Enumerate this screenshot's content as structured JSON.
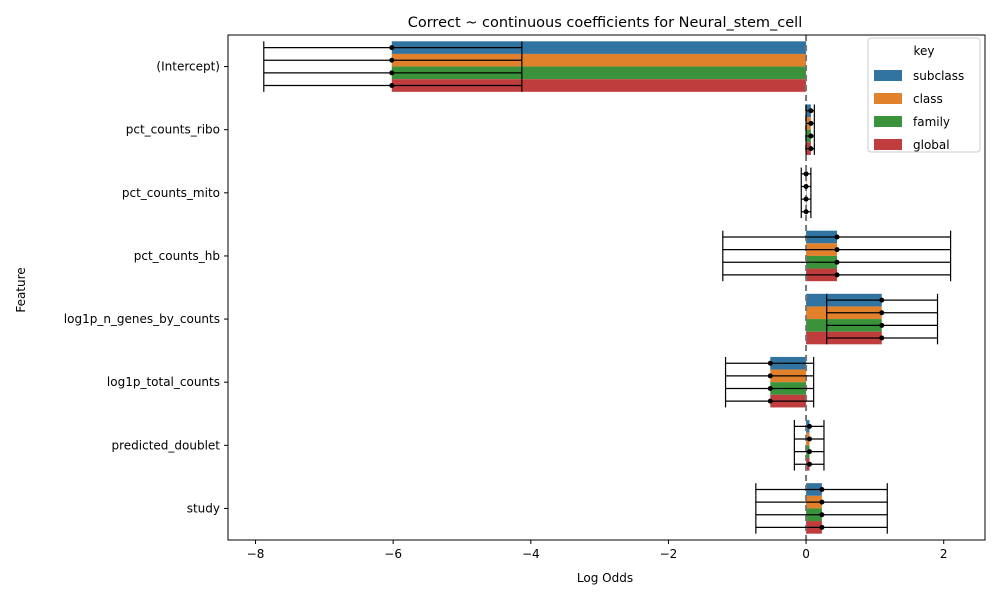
{
  "chart_data": {
    "type": "bar",
    "orientation": "horizontal",
    "title": "Correct ~ continuous coefficients for Neural_stem_cell",
    "xlabel": "Log Odds",
    "ylabel": "Feature",
    "xlim": [
      -8.4,
      2.6
    ],
    "xticks": [
      -8,
      -6,
      -4,
      -2,
      0,
      2
    ],
    "xtick_labels": [
      "−8",
      "−6",
      "−4",
      "−2",
      "0",
      "2"
    ],
    "reference_line": 0,
    "categories": [
      "(Intercept)",
      "pct_counts_ribo",
      "pct_counts_mito",
      "pct_counts_hb",
      "log1p_n_genes_by_counts",
      "log1p_total_counts",
      "predicted_doublet",
      "study"
    ],
    "legend": {
      "title": "key",
      "position": "top-right"
    },
    "series": [
      {
        "name": "subclass",
        "color": "#3274a1",
        "values": [
          -6.02,
          0.07,
          0.0,
          0.45,
          1.1,
          -0.52,
          0.05,
          0.23
        ],
        "lower": [
          -7.88,
          0.0,
          -0.07,
          -1.21,
          0.3,
          -1.17,
          -0.17,
          -0.73
        ],
        "upper": [
          -4.13,
          0.12,
          0.07,
          2.1,
          1.91,
          0.11,
          0.26,
          1.18
        ]
      },
      {
        "name": "class",
        "color": "#e1812c",
        "values": [
          -6.02,
          0.07,
          0.0,
          0.45,
          1.1,
          -0.52,
          0.05,
          0.23
        ],
        "lower": [
          -7.88,
          0.0,
          -0.07,
          -1.21,
          0.3,
          -1.17,
          -0.17,
          -0.73
        ],
        "upper": [
          -4.13,
          0.12,
          0.07,
          2.1,
          1.91,
          0.11,
          0.26,
          1.18
        ]
      },
      {
        "name": "family",
        "color": "#3a923a",
        "values": [
          -6.02,
          0.07,
          0.0,
          0.45,
          1.1,
          -0.52,
          0.05,
          0.23
        ],
        "lower": [
          -7.88,
          0.0,
          -0.07,
          -1.21,
          0.3,
          -1.17,
          -0.17,
          -0.73
        ],
        "upper": [
          -4.13,
          0.12,
          0.07,
          2.1,
          1.91,
          0.11,
          0.26,
          1.18
        ]
      },
      {
        "name": "global",
        "color": "#c03d3e",
        "values": [
          -6.02,
          0.07,
          0.0,
          0.45,
          1.1,
          -0.52,
          0.05,
          0.23
        ],
        "lower": [
          -7.88,
          0.0,
          -0.07,
          -1.21,
          0.3,
          -1.17,
          -0.17,
          -0.73
        ],
        "upper": [
          -4.13,
          0.12,
          0.07,
          2.1,
          1.91,
          0.11,
          0.26,
          1.18
        ]
      }
    ]
  }
}
